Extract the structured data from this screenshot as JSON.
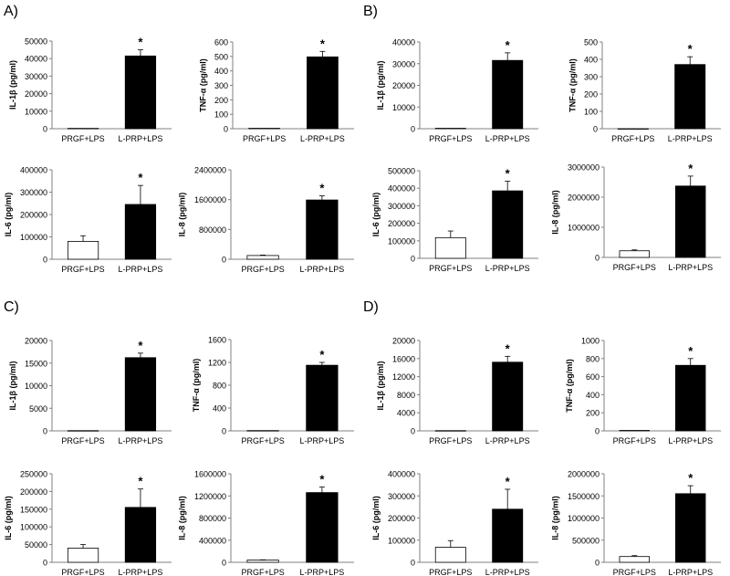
{
  "panels": [
    {
      "label": "A)"
    },
    {
      "label": "B)"
    },
    {
      "label": "C)"
    },
    {
      "label": "D)"
    }
  ],
  "colors": {
    "prgf_bar": "#ffffff",
    "lprp_bar": "#000000",
    "axis": "#808080"
  },
  "chart_data": [
    {
      "panel": "A)",
      "type": "bar",
      "ylabel": "IL-1β (pg/ml)",
      "categories": [
        "PRGF+LPS",
        "L-PRP+LPS"
      ],
      "values": [
        200,
        41500
      ],
      "errors": [
        0,
        3500
      ],
      "significance": [
        "",
        "*"
      ],
      "ylim": [
        0,
        50000
      ],
      "yticks": [
        0,
        10000,
        20000,
        30000,
        40000,
        50000
      ],
      "yticklabels": [
        "0",
        "10000",
        "20000",
        "30000",
        "40000",
        "50000"
      ]
    },
    {
      "panel": "A)",
      "type": "bar",
      "ylabel": "TNF-α (pg/ml)",
      "categories": [
        "PRGF+LPS",
        "L-PRP+LPS"
      ],
      "values": [
        3,
        497
      ],
      "errors": [
        0,
        38
      ],
      "significance": [
        "",
        "*"
      ],
      "ylim": [
        0,
        600
      ],
      "yticks": [
        0,
        100,
        200,
        300,
        400,
        500,
        600
      ],
      "yticklabels": [
        "0",
        "100",
        "200",
        "300",
        "400",
        "500",
        "600"
      ]
    },
    {
      "panel": "A)",
      "type": "bar",
      "ylabel": "IL-6  (pg/ml)",
      "categories": [
        "PRGF+LPS",
        "L-PRP+LPS"
      ],
      "values": [
        80000,
        245000
      ],
      "errors": [
        25000,
        85000
      ],
      "significance": [
        "",
        "*"
      ],
      "ylim": [
        0,
        400000
      ],
      "yticks": [
        0,
        100000,
        200000,
        300000,
        400000
      ],
      "yticklabels": [
        "0",
        "100000",
        "200000",
        "300000",
        "400000"
      ]
    },
    {
      "panel": "A)",
      "type": "bar",
      "ylabel": "IL-8  (pg/ml)",
      "categories": [
        "PRGF+LPS",
        "L-PRP+LPS"
      ],
      "values": [
        100000,
        1590000
      ],
      "errors": [
        12000,
        110000
      ],
      "significance": [
        "",
        "*"
      ],
      "ylim": [
        0,
        2400000
      ],
      "yticks": [
        0,
        800000,
        1600000,
        2400000
      ],
      "yticklabels": [
        "0",
        "800000",
        "1600000",
        "2400000"
      ]
    },
    {
      "panel": "B)",
      "type": "bar",
      "ylabel": "IL-1β (pg/ml)",
      "categories": [
        "PRGF+LPS",
        "L-PRP+LPS"
      ],
      "values": [
        200,
        31500
      ],
      "errors": [
        0,
        3500
      ],
      "significance": [
        "",
        "*"
      ],
      "ylim": [
        0,
        40000
      ],
      "yticks": [
        0,
        10000,
        20000,
        30000,
        40000
      ],
      "yticklabels": [
        "0",
        "10000",
        "20000",
        "30000",
        "40000"
      ]
    },
    {
      "panel": "B)",
      "type": "bar",
      "ylabel": "TNF-α (pg/ml)",
      "categories": [
        "PRGF+LPS",
        "L-PRP+LPS"
      ],
      "values": [
        0,
        370
      ],
      "errors": [
        0,
        45
      ],
      "significance": [
        "",
        "*"
      ],
      "ylim": [
        0,
        500
      ],
      "yticks": [
        0,
        100,
        200,
        300,
        400,
        500
      ],
      "yticklabels": [
        "0",
        "100",
        "200",
        "300",
        "400",
        "500"
      ]
    },
    {
      "panel": "B)",
      "type": "bar",
      "ylabel": "IL-6  (pg/ml)",
      "categories": [
        "PRGF+LPS",
        "L-PRP+LPS"
      ],
      "values": [
        118000,
        385000
      ],
      "errors": [
        38000,
        55000
      ],
      "significance": [
        "",
        "*"
      ],
      "ylim": [
        0,
        500000
      ],
      "yticks": [
        0,
        100000,
        200000,
        300000,
        400000,
        500000
      ],
      "yticklabels": [
        "0",
        "100000",
        "200000",
        "300000",
        "400000",
        "500000"
      ]
    },
    {
      "panel": "B)",
      "type": "bar",
      "ylabel": "IL-8  (pg/ml)",
      "categories": [
        "PRGF+LPS",
        "L-PRP+LPS"
      ],
      "values": [
        220000,
        2370000
      ],
      "errors": [
        30000,
        330000
      ],
      "significance": [
        "",
        "*"
      ],
      "ylim": [
        0,
        3000000
      ],
      "yticks": [
        0,
        1000000,
        2000000,
        3000000
      ],
      "yticklabels": [
        "0",
        "1000000",
        "2000000",
        "3000000"
      ]
    },
    {
      "panel": "C)",
      "type": "bar",
      "ylabel": "IL-1β (pg/ml)",
      "categories": [
        "PRGF+LPS",
        "L-PRP+LPS"
      ],
      "values": [
        50,
        16200
      ],
      "errors": [
        0,
        1000
      ],
      "significance": [
        "",
        "*"
      ],
      "ylim": [
        0,
        20000
      ],
      "yticks": [
        0,
        5000,
        10000,
        15000,
        20000
      ],
      "yticklabels": [
        "0",
        "5000",
        "10000",
        "15000",
        "20000"
      ]
    },
    {
      "panel": "C)",
      "type": "bar",
      "ylabel": "TNF-α (pg/ml)",
      "categories": [
        "PRGF+LPS",
        "L-PRP+LPS"
      ],
      "values": [
        5,
        1150
      ],
      "errors": [
        0,
        50
      ],
      "significance": [
        "",
        "*"
      ],
      "ylim": [
        0,
        1600
      ],
      "yticks": [
        0,
        400,
        800,
        1200,
        1600
      ],
      "yticklabels": [
        "0",
        "400",
        "800",
        "1200",
        "1600"
      ]
    },
    {
      "panel": "C)",
      "type": "bar",
      "ylabel": "IL-6  (pg/ml)",
      "categories": [
        "PRGF+LPS",
        "L-PRP+LPS"
      ],
      "values": [
        40000,
        155000
      ],
      "errors": [
        10000,
        52000
      ],
      "significance": [
        "",
        "*"
      ],
      "ylim": [
        0,
        250000
      ],
      "yticks": [
        0,
        50000,
        100000,
        150000,
        200000,
        250000
      ],
      "yticklabels": [
        "0",
        "50000",
        "100000",
        "150000",
        "200000",
        "250000"
      ]
    },
    {
      "panel": "C)",
      "type": "bar",
      "ylabel": "IL-8  (pg/ml)",
      "categories": [
        "PRGF+LPS",
        "L-PRP+LPS"
      ],
      "values": [
        40000,
        1260000
      ],
      "errors": [
        5000,
        100000
      ],
      "significance": [
        "",
        "*"
      ],
      "ylim": [
        0,
        1600000
      ],
      "yticks": [
        0,
        400000,
        800000,
        1200000,
        1600000
      ],
      "yticklabels": [
        "0",
        "400000",
        "800000",
        "1200000",
        "1600000"
      ]
    },
    {
      "panel": "D)",
      "type": "bar",
      "ylabel": "IL-1β (pg/ml)",
      "categories": [
        "PRGF+LPS",
        "L-PRP+LPS"
      ],
      "values": [
        50,
        15200
      ],
      "errors": [
        0,
        1300
      ],
      "significance": [
        "",
        "*"
      ],
      "ylim": [
        0,
        20000
      ],
      "yticks": [
        0,
        4000,
        8000,
        12000,
        16000,
        20000
      ],
      "yticklabels": [
        "0",
        "4000",
        "8000",
        "12000",
        "16000",
        "20000"
      ]
    },
    {
      "panel": "D)",
      "type": "bar",
      "ylabel": "TNF-α (pg/ml)",
      "categories": [
        "PRGF+LPS",
        "L-PRP+LPS"
      ],
      "values": [
        5,
        725
      ],
      "errors": [
        0,
        75
      ],
      "significance": [
        "",
        "*"
      ],
      "ylim": [
        0,
        1000
      ],
      "yticks": [
        0,
        200,
        400,
        600,
        800,
        1000
      ],
      "yticklabels": [
        "0",
        "200",
        "400",
        "600",
        "800",
        "1000"
      ]
    },
    {
      "panel": "D)",
      "type": "bar",
      "ylabel": "IL-6  (pg/ml)",
      "categories": [
        "PRGF+LPS",
        "L-PRP+LPS"
      ],
      "values": [
        68000,
        240000
      ],
      "errors": [
        30000,
        90000
      ],
      "significance": [
        "",
        "*"
      ],
      "ylim": [
        0,
        400000
      ],
      "yticks": [
        0,
        100000,
        200000,
        300000,
        400000
      ],
      "yticklabels": [
        "0",
        "100000",
        "200000",
        "300000",
        "400000"
      ]
    },
    {
      "panel": "D)",
      "type": "bar",
      "ylabel": "IL-8  (pg/ml)",
      "categories": [
        "PRGF+LPS",
        "L-PRP+LPS"
      ],
      "values": [
        130000,
        1550000
      ],
      "errors": [
        20000,
        180000
      ],
      "significance": [
        "",
        "*"
      ],
      "ylim": [
        0,
        2000000
      ],
      "yticks": [
        0,
        500000,
        1000000,
        1500000,
        2000000
      ],
      "yticklabels": [
        "0",
        "500000",
        "1000000",
        "1500000",
        "2000000"
      ]
    }
  ]
}
